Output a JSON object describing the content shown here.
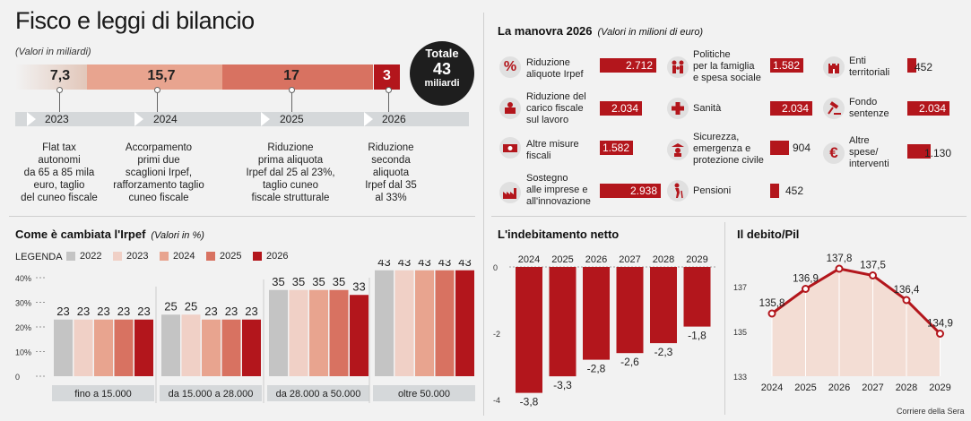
{
  "header": {
    "title": "Fisco e leggi di bilancio",
    "subtitle": "(Valori in miliardi)"
  },
  "totale": {
    "label": "Totale",
    "value": "43",
    "unit": "miliardi"
  },
  "segments": [
    {
      "value": "7,3",
      "color": "#ead0c4"
    },
    {
      "value": "15,7",
      "color": "#e8a48f"
    },
    {
      "value": "17",
      "color": "#d87261"
    },
    {
      "value": "3",
      "color": "#b3161c"
    }
  ],
  "timeline": [
    {
      "year": "2023",
      "desc": [
        "Flat tax",
        "autonomi",
        "da 65 a 85 mila",
        "euro, taglio",
        "del cuneo fiscale"
      ]
    },
    {
      "year": "2024",
      "desc": [
        "Accorpamento",
        "primi due",
        "scaglioni Irpef,",
        "rafforzamento taglio",
        "cuneo fiscale"
      ]
    },
    {
      "year": "2025",
      "desc": [
        "Riduzione",
        "prima aliquota",
        "Irpef dal 25 al 23%,",
        "taglio cuneo",
        "fiscale strutturale"
      ]
    },
    {
      "year": "2026",
      "desc": [
        "Riduzione",
        "seconda",
        "aliquota",
        "Irpef dal 35",
        "al 33%"
      ]
    }
  ],
  "manovra": {
    "title": "La manovra 2026",
    "subtitle": "(Valori in milioni di euro)",
    "items": [
      {
        "label": [
          "Riduzione",
          "aliquote Irpef"
        ],
        "value": 2712,
        "text": "2.712",
        "icon": "percent-icon"
      },
      {
        "label": [
          "Riduzione del",
          "carico fiscale",
          "sul lavoro"
        ],
        "value": 2034,
        "text": "2.034",
        "icon": "worker-icon"
      },
      {
        "label": [
          "Altre misure",
          "fiscali"
        ],
        "value": 1582,
        "text": "1.582",
        "icon": "money-icon"
      },
      {
        "label": [
          "Sostegno",
          "alle imprese e",
          "all'innovazione"
        ],
        "value": 2938,
        "text": "2.938",
        "icon": "factory-icon"
      },
      {
        "label": [
          "Politiche",
          "per la famiglia",
          "e spesa sociale"
        ],
        "value": 1582,
        "text": "1.582",
        "icon": "family-icon"
      },
      {
        "label": [
          "Sanità"
        ],
        "value": 2034,
        "text": "2.034",
        "icon": "health-cross-icon"
      },
      {
        "label": [
          "Sicurezza,",
          "emergenza e",
          "protezione civile"
        ],
        "value": 904,
        "text": "904",
        "icon": "police-icon"
      },
      {
        "label": [
          "Pensioni"
        ],
        "value": 452,
        "text": "452",
        "icon": "elderly-icon"
      },
      {
        "label": [
          "Enti",
          "territoriali"
        ],
        "value": 452,
        "text": "452",
        "icon": "castle-icon"
      },
      {
        "label": [
          "Fondo",
          "sentenze"
        ],
        "value": 2034,
        "text": "2.034",
        "icon": "gavel-icon"
      },
      {
        "label": [
          "Altre",
          "spese/",
          "interventi"
        ],
        "value": 1130,
        "text": "1.130",
        "icon": "euro-icon"
      }
    ]
  },
  "chart_data": [
    {
      "type": "bar",
      "title": "Come è cambiata l'Irpef",
      "subtitle": "(Valori in %)",
      "legend_label": "LEGENDA",
      "categories": [
        "fino a 15.000",
        "da 15.000 a 28.000",
        "da 28.000 a 50.000",
        "oltre 50.000"
      ],
      "series": [
        {
          "name": "2022",
          "color": "#c4c4c4",
          "values": [
            23,
            25,
            35,
            43
          ]
        },
        {
          "name": "2023",
          "color": "#f0d0c6",
          "values": [
            23,
            25,
            35,
            43
          ]
        },
        {
          "name": "2024",
          "color": "#e8a48f",
          "values": [
            23,
            23,
            35,
            43
          ]
        },
        {
          "name": "2025",
          "color": "#d87261",
          "values": [
            23,
            23,
            35,
            43
          ]
        },
        {
          "name": "2026",
          "color": "#b3161c",
          "values": [
            23,
            23,
            33,
            43
          ]
        }
      ],
      "yticks": [
        "40%",
        "30%",
        "20%",
        "10%",
        "0"
      ],
      "ylim": [
        0,
        45
      ]
    },
    {
      "type": "bar",
      "title": "L'indebitamento netto",
      "categories": [
        "2024",
        "2025",
        "2026",
        "2027",
        "2028",
        "2029"
      ],
      "values": [
        -3.8,
        -3.3,
        -2.8,
        -2.6,
        -2.3,
        -1.8
      ],
      "labels": [
        "-3,8",
        "-3,3",
        "-2,8",
        "-2,6",
        "-2,3",
        "-1,8"
      ],
      "yticks": [
        "0",
        "-2",
        "-4"
      ],
      "ylim": [
        -4,
        0
      ]
    },
    {
      "type": "line",
      "title": "Il debito/Pil",
      "x": [
        "2024",
        "2025",
        "2026",
        "2027",
        "2028",
        "2029"
      ],
      "values": [
        135.8,
        136.9,
        137.8,
        137.5,
        136.4,
        134.9
      ],
      "labels": [
        "135,8",
        "136,9",
        "137,8",
        "137,5",
        "136,4",
        "134,9"
      ],
      "yticks": [
        "137",
        "135",
        "133"
      ],
      "ylim": [
        133,
        138
      ]
    }
  ],
  "footer": {
    "source": "Corriere della Sera"
  }
}
